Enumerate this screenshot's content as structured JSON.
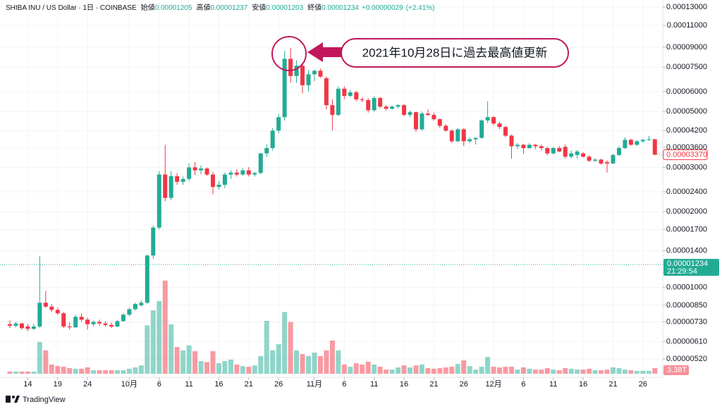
{
  "chart_data": {
    "type": "candlestick",
    "title": "SHIBA INU / US Dollar · 1日 · COINBASE",
    "header": {
      "open_label": "始値",
      "open": 1.205e-05,
      "high_label": "高値",
      "high": 1.237e-05,
      "low_label": "安値",
      "low": 1.203e-05,
      "close_label": "終値",
      "close": 1.234e-05,
      "change": 2.9e-07,
      "change_label": "+0.00000029",
      "change_pct": 2.41,
      "change_pct_label": "(+2.41%)"
    },
    "annotation": "2021年10月28日に過去最高値更新",
    "brand": "TradingView",
    "log_scale": true,
    "grid": true,
    "up_color": "#22ab94",
    "down_color": "#f23645",
    "ylim": [
      4.4e-06,
      0.0001387
    ],
    "yticks": [
      {
        "value": 0.00013,
        "label": "0.00013000"
      },
      {
        "value": 0.00011,
        "label": "0.00011000"
      },
      {
        "value": 9e-05,
        "label": "0.00009000"
      },
      {
        "value": 7.5e-05,
        "label": "0.00007500"
      },
      {
        "value": 6e-05,
        "label": "0.00006000"
      },
      {
        "value": 5e-05,
        "label": "0.00005000"
      },
      {
        "value": 4.2e-05,
        "label": "0.00004200"
      },
      {
        "value": 3.6e-05,
        "label": "0.00003600"
      },
      {
        "value": 3e-05,
        "label": "0.00003000"
      },
      {
        "value": 2.4e-05,
        "label": "0.00002400"
      },
      {
        "value": 2e-05,
        "label": "0.00002000"
      },
      {
        "value": 1.7e-05,
        "label": "0.00001700"
      },
      {
        "value": 1.4e-05,
        "label": "0.00001400"
      },
      {
        "value": 1e-05,
        "label": "0.00001000"
      },
      {
        "value": 8.5e-06,
        "label": "0.00000850"
      },
      {
        "value": 7.3e-06,
        "label": "0.00000730"
      },
      {
        "value": 6.1e-06,
        "label": "0.00000610"
      },
      {
        "value": 5.2e-06,
        "label": "0.00000520"
      }
    ],
    "xticks": [
      {
        "value": "09-14",
        "label": "14"
      },
      {
        "value": "09-19",
        "label": "19"
      },
      {
        "value": "09-24",
        "label": "24"
      },
      {
        "value": "10-01",
        "label": "10月"
      },
      {
        "value": "10-06",
        "label": "6"
      },
      {
        "value": "10-11",
        "label": "11"
      },
      {
        "value": "10-16",
        "label": "16"
      },
      {
        "value": "10-21",
        "label": "21"
      },
      {
        "value": "10-26",
        "label": "26"
      },
      {
        "value": "11-01",
        "label": "11月"
      },
      {
        "value": "11-06",
        "label": "6"
      },
      {
        "value": "11-11",
        "label": "11"
      },
      {
        "value": "11-16",
        "label": "16"
      },
      {
        "value": "11-21",
        "label": "21"
      },
      {
        "value": "11-26",
        "label": "26"
      },
      {
        "value": "12-01",
        "label": "12月"
      },
      {
        "value": "12-06",
        "label": "6"
      },
      {
        "value": "12-11",
        "label": "11"
      },
      {
        "value": "12-16",
        "label": "16"
      },
      {
        "value": "12-21",
        "label": "21"
      },
      {
        "value": "12-26",
        "label": "26"
      }
    ],
    "current_price": {
      "value": 1.234e-05,
      "countdown": "21:29:54"
    },
    "volume_lim": [
      0,
      60
    ],
    "candles": {
      "dates": [
        "09-11",
        "09-12",
        "09-13",
        "09-14",
        "09-15",
        "09-16",
        "09-17",
        "09-18",
        "09-19",
        "09-20",
        "09-21",
        "09-22",
        "09-23",
        "09-24",
        "09-25",
        "09-26",
        "09-27",
        "09-28",
        "09-29",
        "09-30",
        "10-01",
        "10-02",
        "10-03",
        "10-04",
        "10-05",
        "10-06",
        "10-07",
        "10-08",
        "10-09",
        "10-10",
        "10-11",
        "10-12",
        "10-13",
        "10-14",
        "10-15",
        "10-16",
        "10-17",
        "10-18",
        "10-19",
        "10-20",
        "10-21",
        "10-22",
        "10-23",
        "10-24",
        "10-25",
        "10-26",
        "10-27",
        "10-28",
        "10-29",
        "10-30",
        "10-31",
        "11-01",
        "11-02",
        "11-03",
        "11-04",
        "11-05",
        "11-06",
        "11-07",
        "11-08",
        "11-09",
        "11-10",
        "11-11",
        "11-12",
        "11-13",
        "11-14",
        "11-15",
        "11-16",
        "11-17",
        "11-18",
        "11-19",
        "11-20",
        "11-21",
        "11-22",
        "11-23",
        "11-24",
        "11-25",
        "11-26",
        "11-27",
        "11-28",
        "11-29",
        "11-30",
        "12-01",
        "12-02",
        "12-03",
        "12-04",
        "12-05",
        "12-06",
        "12-07",
        "12-08",
        "12-09",
        "12-10",
        "12-11",
        "12-12",
        "12-13",
        "12-14",
        "12-15",
        "12-16",
        "12-17",
        "12-18",
        "12-19",
        "12-20",
        "12-21",
        "12-22",
        "12-23",
        "12-24",
        "12-25",
        "12-26",
        "12-27",
        "12-28"
      ],
      "open": [
        7.15e-06,
        7.05e-06,
        7.2e-06,
        7e-06,
        6.85e-06,
        7e-06,
        8.7e-06,
        8.4e-06,
        8.15e-06,
        7.9e-06,
        7e-06,
        6.95e-06,
        7.65e-06,
        7.45e-06,
        7.15e-06,
        7.3e-06,
        7.2e-06,
        7.1e-06,
        7e-06,
        7.35e-06,
        7.8e-06,
        8.2e-06,
        8.5e-06,
        8.7e-06,
        1.34e-05,
        1.73e-05,
        2.81e-05,
        2.27e-05,
        2.77e-05,
        2.63e-05,
        2.7e-05,
        3e-05,
        2.92e-05,
        2.97e-05,
        2.81e-05,
        2.51e-05,
        2.56e-05,
        2.81e-05,
        2.86e-05,
        2.81e-05,
        2.92e-05,
        2.81e-05,
        2.85e-05,
        3.41e-05,
        3.58e-05,
        4.2e-05,
        4.75e-05,
        8.1e-05,
        6.92e-05,
        7.6e-05,
        6.36e-05,
        7.03e-05,
        7.26e-05,
        6.78e-05,
        5.3e-05,
        4.85e-05,
        6.16e-05,
        5.77e-05,
        5.96e-05,
        5.59e-05,
        5.55e-05,
        5.06e-05,
        5.66e-05,
        5.23e-05,
        5.13e-05,
        5.23e-05,
        5.3e-05,
        4.85e-05,
        4.97e-05,
        4.25e-05,
        4.91e-05,
        4.85e-05,
        4.66e-05,
        4.39e-05,
        4.2e-05,
        3.81e-05,
        4.25e-05,
        3.81e-05,
        3.88e-05,
        3.93e-05,
        4.61e-05,
        4.75e-05,
        4.48e-05,
        4.34e-05,
        4.01e-05,
        3.64e-05,
        3.69e-05,
        3.58e-05,
        3.69e-05,
        3.64e-05,
        3.58e-05,
        3.41e-05,
        3.58e-05,
        3.62e-05,
        3.31e-05,
        3.36e-05,
        3.41e-05,
        3.31e-05,
        3.19e-05,
        3.22e-05,
        3.15e-05,
        3.11e-05,
        3.36e-05,
        3.58e-05,
        3.86e-05,
        3.69e-05,
        3.81e-05,
        3.86e-05,
        3.88e-05
      ],
      "high": [
        7.4e-06,
        7.3e-06,
        7.25e-06,
        7.15e-06,
        7.2e-06,
        1.33e-05,
        9.7e-06,
        8.6e-06,
        8.3e-06,
        8e-06,
        7.3e-06,
        7.8e-06,
        7.9e-06,
        7.6e-06,
        7.4e-06,
        7.45e-06,
        7.35e-06,
        7.25e-06,
        7.45e-06,
        7.9e-06,
        8.3e-06,
        8.7e-06,
        8.9e-06,
        1.35e-05,
        1.76e-05,
        2.9e-05,
        3.69e-05,
        2.9e-05,
        2.85e-05,
        2.76e-05,
        3.11e-05,
        3.15e-05,
        3.05e-05,
        3e-05,
        2.88e-05,
        2.65e-05,
        2.86e-05,
        2.92e-05,
        2.95e-05,
        2.98e-05,
        3.01e-05,
        2.88e-05,
        3.42e-05,
        3.7e-05,
        4.3e-05,
        4.9e-05,
        8.715e-05,
        8.94e-05,
        8e-05,
        7.7e-05,
        7.3e-05,
        7.35e-05,
        7.4e-05,
        6.9e-05,
        5.6e-05,
        6.3e-05,
        6.3e-05,
        6.1e-05,
        6.05e-05,
        5.7e-05,
        5.65e-05,
        5.75e-05,
        5.72e-05,
        5.3e-05,
        5.3e-05,
        5.35e-05,
        5.35e-05,
        5.05e-05,
        5e-05,
        5e-05,
        5.1e-05,
        4.95e-05,
        4.7e-05,
        4.45e-05,
        4.25e-05,
        4.3e-05,
        4.3e-05,
        3.95e-05,
        3.95e-05,
        4.65e-05,
        5.5e-05,
        4.8e-05,
        4.55e-05,
        4.4e-05,
        4.05e-05,
        3.75e-05,
        3.72e-05,
        3.75e-05,
        3.72e-05,
        3.7e-05,
        3.62e-05,
        3.62e-05,
        3.65e-05,
        3.7e-05,
        3.5e-05,
        3.52e-05,
        3.45e-05,
        3.35e-05,
        3.26e-05,
        3.25e-05,
        3.2e-05,
        3.4e-05,
        3.65e-05,
        3.95e-05,
        3.9e-05,
        3.85e-05,
        3.9e-05,
        4e-05,
        3.9e-05
      ],
      "low": [
        6.9e-06,
        6.95e-06,
        6.8e-06,
        6.7e-06,
        6.8e-06,
        6.9e-06,
        8.3e-06,
        8e-06,
        7.8e-06,
        6.9e-06,
        6.8e-06,
        6.9e-06,
        7.3e-06,
        6.8e-06,
        7e-06,
        7.05e-06,
        7e-06,
        6.9e-06,
        6.95e-06,
        7.3e-06,
        7.7e-06,
        8.1e-06,
        8.4e-06,
        8.6e-06,
        1.3e-05,
        1.7e-05,
        2.2e-05,
        2.22e-05,
        2.56e-05,
        2.56e-05,
        2.65e-05,
        2.8e-05,
        2.82e-05,
        2.78e-05,
        2.35e-05,
        2.45e-05,
        2.48e-05,
        2.7e-05,
        2.76e-05,
        2.78e-05,
        2.76e-05,
        2.76e-05,
        2.82e-05,
        3.3e-05,
        3.5e-05,
        4.1e-05,
        4.6e-05,
        6.5e-05,
        6.5e-05,
        5.9e-05,
        6e-05,
        6.6e-05,
        6.8e-05,
        5.1e-05,
        4.2e-05,
        4.8e-05,
        5.6e-05,
        5.7e-05,
        5.5e-05,
        5.45e-05,
        4.95e-05,
        5e-05,
        5.15e-05,
        5.05e-05,
        5.08e-05,
        5.15e-05,
        4.8e-05,
        4.75e-05,
        4.15e-05,
        4.2e-05,
        4.8e-05,
        4.6e-05,
        4.3e-05,
        4.15e-05,
        3.75e-05,
        3.78e-05,
        3.65e-05,
        3.75e-05,
        3.7e-05,
        3.9e-05,
        4.5e-05,
        4.4e-05,
        4.25e-05,
        3.95e-05,
        3.25e-05,
        3.55e-05,
        3.4e-05,
        3.55e-05,
        3.55e-05,
        3.5e-05,
        3.35e-05,
        3.38e-05,
        3.45e-05,
        3.25e-05,
        3.25e-05,
        3.25e-05,
        3.28e-05,
        3.15e-05,
        3.15e-05,
        3.08e-05,
        2.86e-05,
        3.1e-05,
        3.33e-05,
        3.55e-05,
        3.65e-05,
        3.65e-05,
        3.75e-05,
        3.82e-05,
        3.37e-05
      ],
      "close": [
        7.05e-06,
        7.2e-06,
        6.9e-06,
        6.85e-06,
        7e-06,
        8.7e-06,
        8.4e-06,
        8.15e-06,
        7.9e-06,
        7e-06,
        6.95e-06,
        7.65e-06,
        7.45e-06,
        7.15e-06,
        7.3e-06,
        7.2e-06,
        7.1e-06,
        7e-06,
        7.35e-06,
        7.8e-06,
        8.2e-06,
        8.6e-06,
        8.7e-06,
        1.34e-05,
        1.73e-05,
        2.81e-05,
        2.27e-05,
        2.77e-05,
        2.63e-05,
        2.7e-05,
        3e-05,
        2.92e-05,
        2.97e-05,
        2.81e-05,
        2.51e-05,
        2.56e-05,
        2.81e-05,
        2.86e-05,
        2.81e-05,
        2.92e-05,
        2.81e-05,
        2.85e-05,
        3.41e-05,
        3.58e-05,
        4.2e-05,
        4.75e-05,
        8.1e-05,
        6.92e-05,
        7.6e-05,
        6.36e-05,
        7.03e-05,
        7.26e-05,
        6.88e-05,
        5.3e-05,
        4.85e-05,
        6.16e-05,
        5.77e-05,
        5.96e-05,
        5.59e-05,
        5.55e-05,
        5.06e-05,
        5.66e-05,
        5.23e-05,
        5.13e-05,
        5.23e-05,
        5.3e-05,
        4.85e-05,
        4.97e-05,
        4.25e-05,
        4.91e-05,
        4.85e-05,
        4.66e-05,
        4.39e-05,
        4.2e-05,
        3.81e-05,
        4.25e-05,
        3.81e-05,
        3.88e-05,
        3.93e-05,
        4.61e-05,
        4.75e-05,
        4.48e-05,
        4.34e-05,
        4.01e-05,
        3.64e-05,
        3.69e-05,
        3.58e-05,
        3.69e-05,
        3.64e-05,
        3.58e-05,
        3.41e-05,
        3.58e-05,
        3.47e-05,
        3.31e-05,
        3.41e-05,
        3.47e-05,
        3.31e-05,
        3.19e-05,
        3.22e-05,
        3.11e-05,
        3.11e-05,
        3.36e-05,
        3.58e-05,
        3.86e-05,
        3.69e-05,
        3.81e-05,
        3.86e-05,
        3.88e-05,
        3.37e-05
      ],
      "last_close_label": "0.00003370",
      "volume": [
        1.3,
        1.3,
        1.3,
        1.3,
        1.3,
        19,
        14,
        5.5,
        4.6,
        4.2,
        3.4,
        3,
        3,
        3.8,
        2.1,
        2.1,
        2.1,
        2.1,
        2.1,
        2.1,
        3,
        3.8,
        5,
        29,
        38,
        43.5,
        55.8,
        29.6,
        16,
        14,
        17,
        13.5,
        7.6,
        7,
        13.5,
        6.3,
        7.6,
        8.5,
        5.5,
        4.6,
        4.2,
        5,
        10.6,
        31.7,
        14,
        17.7,
        37,
        31,
        14,
        11.8,
        10.6,
        12.7,
        10.6,
        14,
        19.9,
        14,
        5.5,
        4.2,
        6.3,
        5.5,
        7.2,
        5.5,
        4.2,
        2.5,
        2.5,
        3.8,
        5,
        3.8,
        5,
        5.5,
        3.4,
        3,
        3.4,
        3.8,
        4.2,
        5.9,
        8,
        4.6,
        2.5,
        4.2,
        10,
        4.2,
        3.8,
        4.2,
        4.2,
        2.5,
        3.8,
        3,
        2.5,
        2.5,
        3.4,
        2.5,
        2.1,
        3.4,
        3,
        2.5,
        2.5,
        3,
        2.1,
        2.1,
        2.5,
        3.8,
        3.4,
        2.5,
        2.1,
        1.7,
        1.7,
        1.7,
        3.38
      ],
      "volume_label": "3.38T"
    }
  }
}
